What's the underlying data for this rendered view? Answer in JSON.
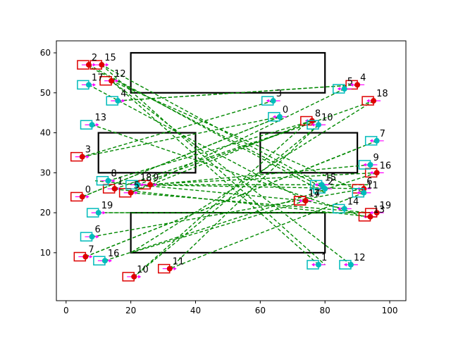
{
  "chart_data": {
    "type": "scatter",
    "title": "",
    "xlabel": "",
    "ylabel": "",
    "xlim": [
      -3,
      105
    ],
    "ylim": [
      -2,
      63
    ],
    "xticks": [
      0,
      20,
      40,
      60,
      80,
      100
    ],
    "yticks": [
      10,
      20,
      30,
      40,
      50,
      60
    ],
    "grid": false,
    "legend": "none",
    "colors": {
      "obstacle": "#000000",
      "red_agent": "#dd0000",
      "cyan_agent": "#00bbbb",
      "heading": "#ff00ff",
      "path": "#008800"
    },
    "obstacles": [
      {
        "x0": 20,
        "y0": 50,
        "x1": 80,
        "y1": 60
      },
      {
        "x0": 10,
        "y0": 30,
        "x1": 40,
        "y1": 40
      },
      {
        "x0": 60,
        "y0": 30,
        "x1": 90,
        "y1": 40
      },
      {
        "x0": 20,
        "y0": 10,
        "x1": 80,
        "y1": 20
      }
    ],
    "red_agents": [
      {
        "label": "0",
        "x": 5,
        "y": 24,
        "goal": [
          66,
          44
        ]
      },
      {
        "label": "1",
        "x": 15,
        "y": 26,
        "goal": [
          78,
          43
        ]
      },
      {
        "label": "2",
        "x": 7,
        "y": 57,
        "goal": [
          80,
          25
        ]
      },
      {
        "label": "3",
        "x": 5,
        "y": 34,
        "goal": [
          66,
          44
        ]
      },
      {
        "label": "4",
        "x": 90,
        "y": 52,
        "goal": [
          16,
          48
        ]
      },
      {
        "label": "5",
        "x": 20,
        "y": 25,
        "goal": [
          94,
          20
        ]
      },
      {
        "label": "6",
        "x": 92,
        "y": 26,
        "goal": [
          22,
          27
        ]
      },
      {
        "label": "7",
        "x": 6,
        "y": 9,
        "goal": [
          90,
          36
        ]
      },
      {
        "label": "8",
        "x": 76,
        "y": 43,
        "goal": [
          20,
          25
        ]
      },
      {
        "label": "9",
        "x": 26,
        "y": 27,
        "goal": [
          94,
          27
        ]
      },
      {
        "label": "10",
        "x": 21,
        "y": 4,
        "goal": [
          75,
          43
        ]
      },
      {
        "label": "11",
        "x": 32,
        "y": 6,
        "goal": [
          78,
          42
        ]
      },
      {
        "label": "12",
        "x": 14,
        "y": 53,
        "goal": [
          92,
          25
        ]
      },
      {
        "label": "13",
        "x": 94,
        "y": 19,
        "goal": [
          14,
          26
        ]
      },
      {
        "label": "14",
        "x": 74,
        "y": 23,
        "goal": [
          20,
          10
        ]
      },
      {
        "label": "15",
        "x": 11,
        "y": 57,
        "goal": [
          80,
          7
        ]
      },
      {
        "label": "16",
        "x": 96,
        "y": 30,
        "goal": [
          23,
          27
        ]
      },
      {
        "label": "17",
        "x": 74,
        "y": 23,
        "goal": [
          9,
          28
        ]
      },
      {
        "label": "18",
        "x": 95,
        "y": 48,
        "goal": [
          20,
          10
        ]
      },
      {
        "label": "19",
        "x": 96,
        "y": 20,
        "goal": [
          10,
          20
        ]
      }
    ],
    "cyan_agents": [
      {
        "label": "0",
        "x": 66,
        "y": 44,
        "goal": [
          5,
          24
        ]
      },
      {
        "label": "1",
        "x": 78,
        "y": 7,
        "goal": [
          14,
          53
        ]
      },
      {
        "label": "2",
        "x": 80,
        "y": 26,
        "goal": [
          6,
          57
        ]
      },
      {
        "label": "3",
        "x": 64,
        "y": 48,
        "goal": [
          5,
          34
        ]
      },
      {
        "label": "4",
        "x": 16,
        "y": 48,
        "goal": [
          90,
          52
        ]
      },
      {
        "label": "5",
        "x": 86,
        "y": 51,
        "goal": [
          20,
          25
        ]
      },
      {
        "label": "6",
        "x": 8,
        "y": 14,
        "goal": [
          92,
          26
        ]
      },
      {
        "label": "7",
        "x": 96,
        "y": 38,
        "goal": [
          6,
          9
        ]
      },
      {
        "label": "8",
        "x": 13,
        "y": 28,
        "goal": [
          76,
          43
        ]
      },
      {
        "label": "9",
        "x": 94,
        "y": 32,
        "goal": [
          26,
          27
        ]
      },
      {
        "label": "10",
        "x": 78,
        "y": 42,
        "goal": [
          21,
          4
        ]
      },
      {
        "label": "11",
        "x": 92,
        "y": 25,
        "goal": [
          32,
          6
        ]
      },
      {
        "label": "12",
        "x": 88,
        "y": 7,
        "goal": [
          14,
          53
        ]
      },
      {
        "label": "13",
        "x": 8,
        "y": 42,
        "goal": [
          92,
          19
        ]
      },
      {
        "label": "14",
        "x": 86,
        "y": 21,
        "goal": [
          74,
          23
        ]
      },
      {
        "label": "15",
        "x": 79,
        "y": 27,
        "goal": [
          11,
          57
        ]
      },
      {
        "label": "16",
        "x": 12,
        "y": 8,
        "goal": [
          96,
          30
        ]
      },
      {
        "label": "17",
        "x": 7,
        "y": 52,
        "goal": [
          74,
          23
        ]
      },
      {
        "label": "18",
        "x": 22,
        "y": 27,
        "goal": [
          95,
          48
        ]
      },
      {
        "label": "19",
        "x": 10,
        "y": 20,
        "goal": [
          96,
          20
        ]
      }
    ]
  }
}
